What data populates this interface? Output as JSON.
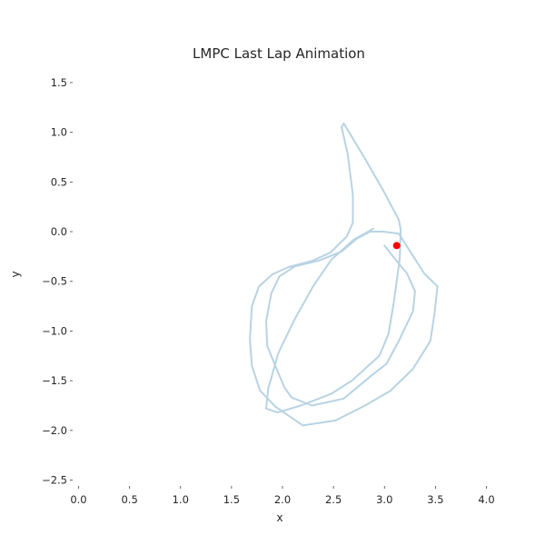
{
  "chart_data": {
    "type": "line",
    "title": "LMPC Last Lap Animation",
    "xlabel": "x",
    "ylabel": "y",
    "xlim": [
      -0.04,
      4.04
    ],
    "ylim": [
      -2.55,
      1.6
    ],
    "grid": false,
    "legend": "none",
    "x_ticks": [
      0.0,
      0.5,
      1.0,
      1.5,
      2.0,
      2.5,
      3.0,
      3.5,
      4.0
    ],
    "x_tick_labels": [
      "0.0",
      "0.5",
      "1.0",
      "1.5",
      "2.0",
      "2.5",
      "3.0",
      "3.5",
      "4.0"
    ],
    "y_ticks": [
      1.5,
      1.0,
      0.5,
      0.0,
      -0.5,
      -1.0,
      -1.5,
      -2.0,
      -2.5
    ],
    "y_tick_labels": [
      "1.5",
      "1.0",
      "0.5",
      "0.0",
      "−0.5",
      "−1.0",
      "−1.5",
      "−2.0",
      "−2.5"
    ],
    "colors": {
      "track": "#b8d3e3",
      "car": "#ff0000"
    },
    "series": [
      {
        "values": [
          [
            2.89,
            0.03
          ],
          [
            2.7,
            -0.08
          ],
          [
            2.48,
            -0.28
          ],
          [
            2.3,
            -0.55
          ],
          [
            2.12,
            -0.88
          ],
          [
            1.96,
            -1.22
          ],
          [
            1.86,
            -1.58
          ],
          [
            1.84,
            -1.78
          ],
          [
            1.95,
            -1.82
          ],
          [
            2.18,
            -1.75
          ],
          [
            2.48,
            -1.63
          ],
          [
            2.68,
            -1.5
          ],
          [
            2.95,
            -1.25
          ],
          [
            3.04,
            -1.03
          ],
          [
            3.09,
            -0.72
          ],
          [
            3.15,
            -0.27
          ],
          [
            3.16,
            0.02
          ],
          [
            3.14,
            0.12
          ],
          [
            2.98,
            0.43
          ],
          [
            2.8,
            0.75
          ],
          [
            2.6,
            1.09
          ],
          [
            2.58,
            1.05
          ],
          [
            2.64,
            0.78
          ],
          [
            2.69,
            0.37
          ],
          [
            2.69,
            0.09
          ],
          [
            2.63,
            -0.05
          ],
          [
            2.47,
            -0.21
          ],
          [
            2.3,
            -0.29
          ],
          [
            2.05,
            -0.36
          ],
          [
            1.9,
            -0.43
          ],
          [
            1.77,
            -0.55
          ],
          [
            1.7,
            -0.75
          ],
          [
            1.68,
            -1.08
          ],
          [
            1.7,
            -1.35
          ],
          [
            1.78,
            -1.6
          ],
          [
            1.93,
            -1.76
          ],
          [
            2.2,
            -1.95
          ],
          [
            2.52,
            -1.9
          ],
          [
            2.81,
            -1.75
          ],
          [
            3.06,
            -1.6
          ],
          [
            3.28,
            -1.38
          ],
          [
            3.45,
            -1.1
          ],
          [
            3.49,
            -0.83
          ],
          [
            3.52,
            -0.55
          ],
          [
            3.39,
            -0.42
          ],
          [
            3.24,
            -0.18
          ],
          [
            3.14,
            -0.02
          ],
          [
            2.99,
            0.0
          ],
          [
            2.86,
            0.0
          ],
          [
            2.73,
            -0.07
          ],
          [
            2.58,
            -0.2
          ],
          [
            2.36,
            -0.29
          ],
          [
            2.12,
            -0.35
          ],
          [
            1.97,
            -0.45
          ],
          [
            1.89,
            -0.62
          ],
          [
            1.84,
            -0.9
          ],
          [
            1.85,
            -1.15
          ],
          [
            1.91,
            -1.3
          ],
          [
            2.02,
            -1.57
          ],
          [
            2.09,
            -1.67
          ],
          [
            2.29,
            -1.75
          ],
          [
            2.6,
            -1.68
          ],
          [
            2.87,
            -1.45
          ],
          [
            3.02,
            -1.33
          ],
          [
            3.14,
            -1.1
          ],
          [
            3.28,
            -0.8
          ],
          [
            3.3,
            -0.6
          ],
          [
            3.22,
            -0.42
          ],
          [
            3.1,
            -0.27
          ],
          [
            3.0,
            -0.14
          ]
        ]
      }
    ],
    "car_position": [
      3.12,
      -0.14
    ]
  }
}
